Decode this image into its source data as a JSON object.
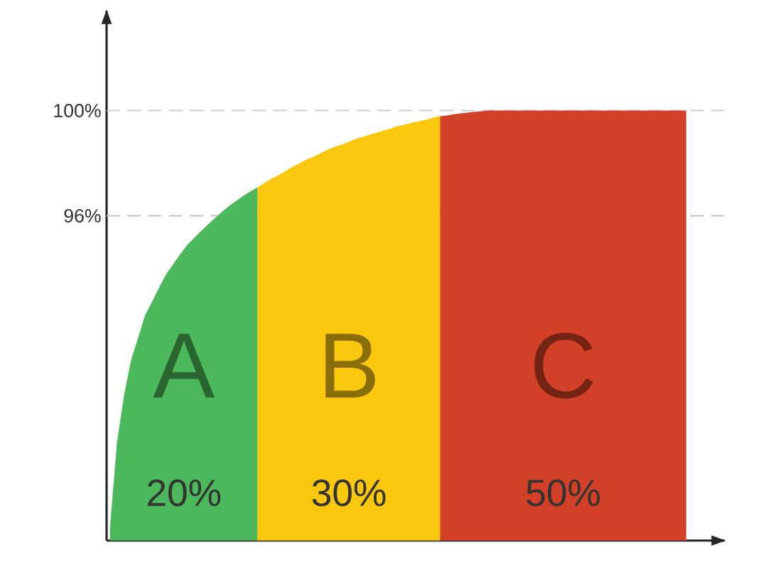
{
  "chart_data": {
    "type": "area",
    "categories": [
      null,
      null,
      null,
      null,
      null,
      null,
      null,
      null,
      null,
      null,
      null,
      null,
      null,
      null,
      null,
      null,
      null,
      null,
      null,
      null,
      null,
      null,
      null,
      null,
      null,
      null,
      null,
      null,
      null,
      null,
      null,
      null,
      null,
      null,
      null,
      null,
      null,
      null,
      null,
      null,
      null,
      null,
      null,
      null,
      null,
      null,
      null,
      null,
      null,
      null,
      null,
      null,
      null,
      null,
      null,
      null,
      null,
      null,
      null,
      null,
      null,
      null,
      null,
      null,
      null,
      null,
      null,
      null,
      null,
      null,
      null,
      null,
      null,
      null,
      null,
      null,
      null,
      null,
      null,
      null,
      null,
      null,
      null,
      null,
      null,
      null,
      null,
      null
    ],
    "ylim": [
      83.65,
      103.8
    ],
    "yticks": [
      {
        "value": 96,
        "label": "96%"
      },
      {
        "value": 100,
        "label": "100%"
      }
    ],
    "tick_labels": "y",
    "grid": false,
    "series": [
      {
        "name": "A",
        "color": "#4cb85c",
        "values": [
          84.14,
          87.38,
          89.16,
          90.51,
          91.35,
          92.22,
          92.73,
          93.27,
          93.78,
          94.16,
          94.54,
          94.89,
          95.16,
          95.43,
          95.68,
          95.92,
          96.16,
          96.38,
          96.57,
          96.76,
          96.92,
          97.08,
          null,
          null,
          null,
          null,
          null,
          null,
          null,
          null,
          null,
          null,
          null,
          null,
          null,
          null,
          null,
          null,
          null,
          null,
          null,
          null,
          null,
          null,
          null,
          null,
          null,
          null,
          null,
          null,
          null,
          null,
          null,
          null,
          null,
          null,
          null,
          null,
          null,
          null,
          null,
          null,
          null,
          null,
          null,
          null,
          null,
          null,
          null,
          null,
          null,
          null,
          null,
          null,
          null,
          null,
          null,
          null,
          null,
          null,
          null,
          null,
          null,
          null,
          null,
          null,
          null,
          null
        ]
      },
      {
        "name": "B",
        "color": "#f9c80e",
        "values": [
          null,
          null,
          null,
          null,
          null,
          null,
          null,
          null,
          null,
          null,
          null,
          null,
          null,
          null,
          null,
          null,
          null,
          null,
          null,
          null,
          null,
          97.08,
          97.24,
          97.41,
          97.54,
          97.7,
          97.86,
          97.99,
          98.14,
          98.24,
          98.38,
          98.51,
          98.62,
          98.7,
          98.81,
          98.92,
          99.0,
          99.08,
          99.16,
          99.24,
          99.32,
          99.41,
          99.46,
          99.54,
          99.59,
          99.65,
          99.73,
          99.78,
          null,
          null,
          null,
          null,
          null,
          null,
          null,
          null,
          null,
          null,
          null,
          null,
          null,
          null,
          null,
          null,
          null,
          null,
          null,
          null,
          null,
          null,
          null,
          null,
          null,
          null,
          null,
          null,
          null,
          null,
          null,
          null,
          null,
          null,
          null,
          null,
          null,
          null,
          null,
          null
        ]
      },
      {
        "name": "C",
        "color": "#d24127",
        "values": [
          null,
          null,
          null,
          null,
          null,
          null,
          null,
          null,
          null,
          null,
          null,
          null,
          null,
          null,
          null,
          null,
          null,
          null,
          null,
          null,
          null,
          null,
          null,
          null,
          null,
          null,
          null,
          null,
          null,
          null,
          null,
          null,
          null,
          null,
          null,
          null,
          null,
          null,
          null,
          null,
          null,
          null,
          null,
          null,
          null,
          null,
          null,
          99.78,
          99.81,
          99.86,
          99.89,
          99.92,
          99.95,
          99.97,
          100,
          100,
          100,
          100,
          100,
          100,
          100,
          100,
          100,
          100,
          100,
          100,
          100,
          100,
          100,
          100,
          100,
          100,
          100,
          100,
          100,
          100,
          100,
          100,
          100,
          100,
          100,
          100,
          100,
          null,
          null,
          null,
          null,
          null
        ]
      }
    ],
    "ref_lines": [
      {
        "axis": "y",
        "value": 100,
        "color": "#c8c8c8",
        "line_style": "dashed"
      },
      {
        "axis": "y",
        "value": 96,
        "color": "#c8c8c8",
        "line_style": "dashed"
      }
    ],
    "annotations": [
      "20%",
      "30%",
      "50%"
    ]
  }
}
